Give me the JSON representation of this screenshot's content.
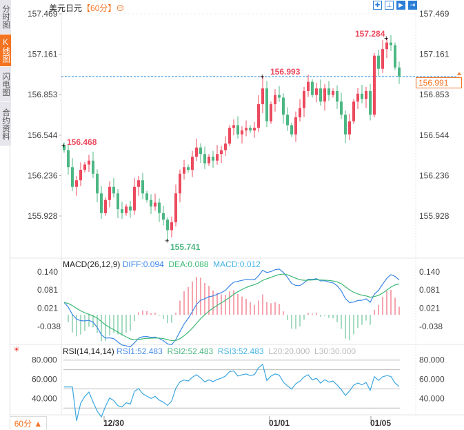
{
  "sidebar": {
    "tabs": [
      "分时图",
      "K线图",
      "闪电图",
      "合约资料"
    ],
    "active": 1
  },
  "header": {
    "symbol": "美元日元",
    "period": "【60分】",
    "zoom_icon": "⊖"
  },
  "toolbar": {
    "icons": [
      "crosshair-icon",
      "range-icon",
      "play-icon",
      "jump-to-end-icon"
    ]
  },
  "price_axis": {
    "ticks": [
      "157.469",
      "157.161",
      "156.853",
      "156.544",
      "156.236",
      "155.928"
    ]
  },
  "current_price": "156.991",
  "markers": {
    "high": "157.284",
    "mid_high": "156.993",
    "start": "156.468",
    "low": "155.741"
  },
  "macd": {
    "title": "MACD(26,12,9)",
    "diff": "DIFF:0.094",
    "dea": "DEA:0.088",
    "macd": "MACD:0.012",
    "ticks": [
      "0.140",
      "0.081",
      "0.021",
      "-0.038"
    ]
  },
  "rsi": {
    "title": "RSI(14,14,14)",
    "rsi1": "RSI1:52.483",
    "rsi2": "RSI2:52.483",
    "rsi3": "RSI3:52.483",
    "l20": "L20:20.000",
    "l30": "L30:30.000",
    "ticks": [
      "80.000",
      "60.000",
      "40.000"
    ]
  },
  "dates": [
    "12/30",
    "01/01",
    "01/05"
  ],
  "bottom": {
    "period_label": "60分 ▲"
  },
  "colors": {
    "up": "#ec4a5e",
    "down": "#4cb783",
    "diff": "#3a86e8",
    "dea": "#3bb873",
    "rsi": "#3aa6e0",
    "accent": "#f47321"
  },
  "chart_data": {
    "type": "candlestick",
    "interval": "60min",
    "ylim": [
      155.7,
      157.5
    ],
    "close": [
      156.43,
      156.3,
      156.15,
      156.2,
      156.28,
      156.32,
      156.35,
      156.25,
      156.1,
      155.95,
      156.05,
      156.15,
      156.1,
      155.98,
      155.95,
      156.0,
      155.97,
      156.15,
      156.2,
      156.1,
      156.05,
      156.0,
      156.03,
      155.95,
      155.9,
      155.82,
      155.88,
      156.1,
      156.25,
      156.3,
      156.28,
      156.38,
      156.45,
      156.4,
      156.33,
      156.38,
      156.35,
      156.4,
      156.43,
      156.48,
      156.6,
      156.62,
      156.55,
      156.58,
      156.6,
      156.58,
      156.6,
      156.78,
      156.9,
      156.65,
      156.78,
      156.85,
      156.83,
      156.7,
      156.62,
      156.55,
      156.68,
      156.75,
      156.88,
      156.95,
      156.85,
      156.9,
      156.8,
      156.9,
      156.85,
      156.88,
      156.8,
      156.7,
      156.55,
      156.65,
      156.8,
      156.86,
      156.82,
      156.88,
      156.7,
      157.15,
      157.05,
      157.2,
      157.25,
      157.23,
      157.06,
      156.991
    ],
    "high_point": 157.284,
    "low_point": 155.741,
    "open_first": 156.468
  }
}
